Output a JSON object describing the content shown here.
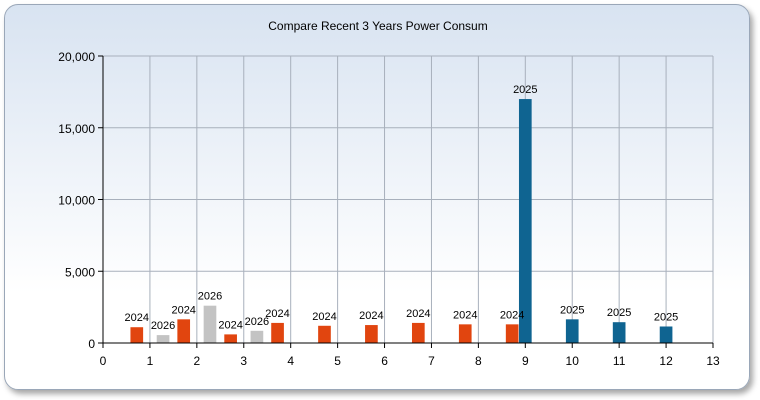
{
  "chart_data": {
    "type": "bar",
    "title": "Compare Recent 3 Years Power Consum",
    "xlabel": "",
    "ylabel": "",
    "xlim": [
      0,
      13
    ],
    "ylim": [
      0,
      20000
    ],
    "x_ticks": [
      "0",
      "1",
      "2",
      "3",
      "4",
      "5",
      "6",
      "7",
      "8",
      "9",
      "10",
      "11",
      "12",
      "13"
    ],
    "y_ticks": [
      "0",
      "5,000",
      "10,000",
      "15,000",
      "20,000"
    ],
    "grid": true,
    "colors": {
      "2024": "#e1450f",
      "2025": "#0f6491",
      "2026": "#c3c3c3"
    },
    "series": [
      {
        "name": "2024",
        "points": [
          {
            "x": 1,
            "value": 1100,
            "label": "2024"
          },
          {
            "x": 2,
            "value": 1650,
            "label": "2024"
          },
          {
            "x": 3,
            "value": 600,
            "label": "2024"
          },
          {
            "x": 4,
            "value": 1400,
            "label": "2024"
          },
          {
            "x": 5,
            "value": 1200,
            "label": "2024"
          },
          {
            "x": 6,
            "value": 1250,
            "label": "2024"
          },
          {
            "x": 7,
            "value": 1400,
            "label": "2024"
          },
          {
            "x": 8,
            "value": 1300,
            "label": "2024"
          },
          {
            "x": 9,
            "value": 1300,
            "label": "2024"
          }
        ]
      },
      {
        "name": "2025",
        "points": [
          {
            "x": 9,
            "value": 17000,
            "label": "2025"
          },
          {
            "x": 10,
            "value": 1650,
            "label": "2025"
          },
          {
            "x": 11,
            "value": 1450,
            "label": "2025"
          },
          {
            "x": 12,
            "value": 1150,
            "label": "2025"
          }
        ]
      },
      {
        "name": "2026",
        "points": [
          {
            "x": 1,
            "value": 550,
            "label": "2026"
          },
          {
            "x": 2,
            "value": 2600,
            "label": "2026"
          },
          {
            "x": 3,
            "value": 850,
            "label": "2026"
          }
        ]
      }
    ]
  }
}
